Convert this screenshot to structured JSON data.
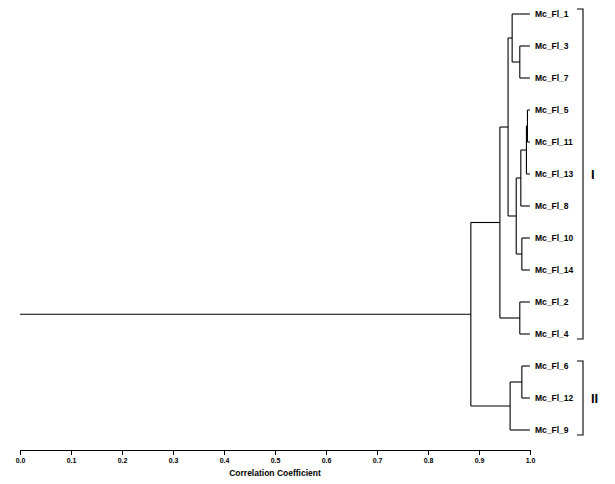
{
  "chart_data": {
    "type": "dendrogram",
    "x_label": "Correlation Coefficient",
    "xlim": [
      0,
      1
    ],
    "xticks": [
      {
        "value": 0,
        "label": "0.0"
      },
      0.1,
      0.2,
      0.3,
      0.4,
      0.5,
      0.6,
      0.7,
      0.8,
      0.9,
      {
        "value": 1,
        "label": "1.0"
      }
    ],
    "tree": {
      "height": 0.884,
      "children": [
        {
          "label": "I",
          "height": 0.941,
          "children": [
            {
              "height": 0.957,
              "children": [
                {
                  "height": 0.965,
                  "children": [
                    {
                      "name": "Mc_Fl_1"
                    },
                    {
                      "height": 0.98,
                      "children": [
                        {
                          "name": "Mc_Fl_3"
                        },
                        {
                          "name": "Mc_Fl_7"
                        }
                      ]
                    }
                  ]
                },
                {
                  "height": 0.973,
                  "children": [
                    {
                      "height": 0.982,
                      "children": [
                        {
                          "height": 0.993,
                          "children": [
                            {
                              "height": 0.995,
                              "children": [
                                {
                                  "name": "Mc_Fl_5"
                                },
                                {
                                  "name": "Mc_Fl_11"
                                }
                              ]
                            },
                            {
                              "name": "Mc_Fl_13"
                            }
                          ]
                        },
                        {
                          "name": "Mc_Fl_8"
                        }
                      ]
                    },
                    {
                      "height": 0.984,
                      "children": [
                        {
                          "name": "Mc_Fl_10"
                        },
                        {
                          "name": "Mc_Fl_14"
                        }
                      ]
                    }
                  ]
                }
              ]
            },
            {
              "height": 0.98,
              "children": [
                {
                  "name": "Mc_Fl_2"
                },
                {
                  "name": "Mc_Fl_4"
                }
              ]
            }
          ]
        },
        {
          "label": "II",
          "height": 0.961,
          "children": [
            {
              "height": 0.984,
              "children": [
                {
                  "name": "Mc_Fl_6"
                },
                {
                  "name": "Mc_Fl_12"
                }
              ]
            },
            {
              "name": "Mc_Fl_9"
            }
          ]
        }
      ]
    }
  }
}
